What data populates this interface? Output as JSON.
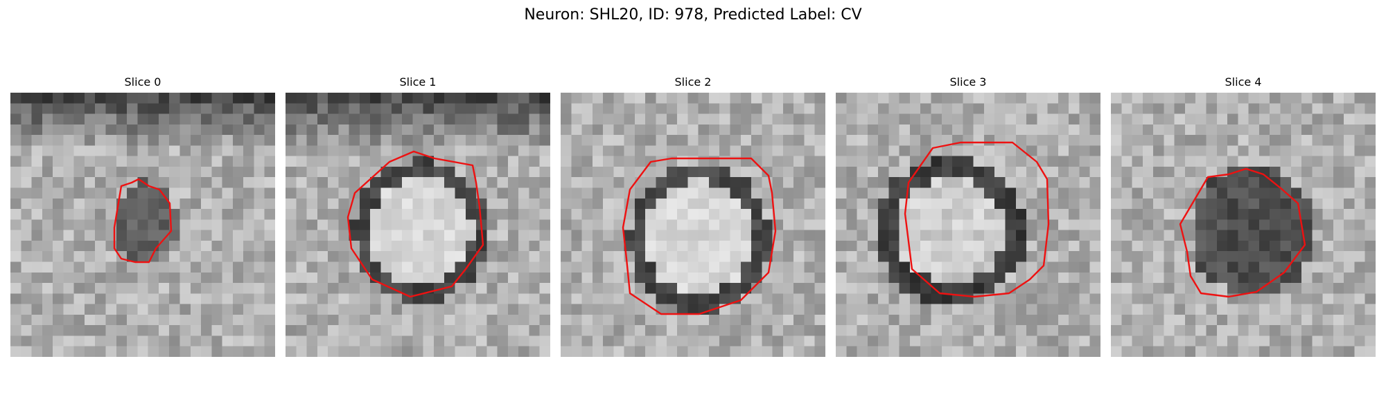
{
  "figure": {
    "title": "Neuron: SHL20, ID: 978, Predicted Label: CV",
    "contour_color": "#ee1111",
    "panels": [
      {
        "title": "Slice 0",
        "pattern": "small-dark-blob"
      },
      {
        "title": "Slice 1",
        "pattern": "bright-ring"
      },
      {
        "title": "Slice 2",
        "pattern": "bright-ring"
      },
      {
        "title": "Slice 3",
        "pattern": "dark-ring"
      },
      {
        "title": "Slice 4",
        "pattern": "dark-blob"
      }
    ]
  }
}
